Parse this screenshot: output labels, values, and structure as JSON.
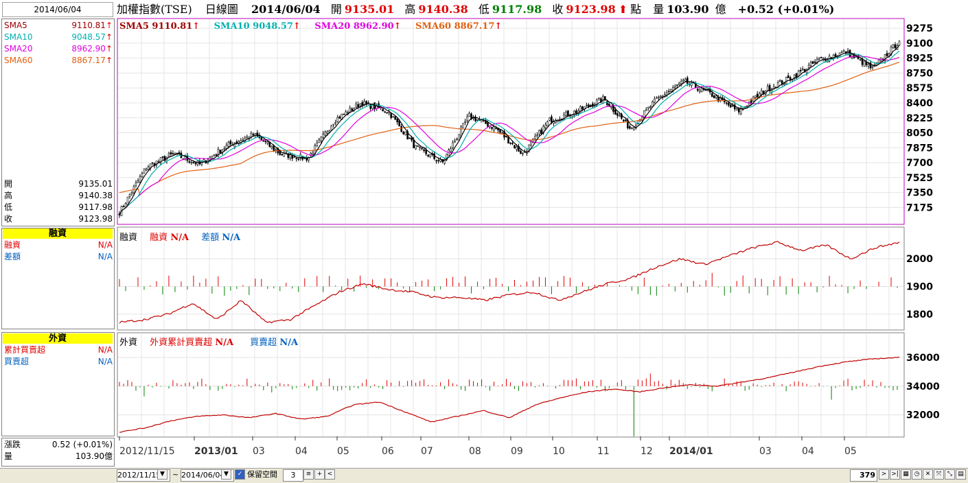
{
  "header": {
    "date": "2014/06/04",
    "index_name": "加權指數(TSE)",
    "chart_kind": "日線圖",
    "chart_date": "2014/06/04",
    "open_label": "開",
    "open": "9135.01",
    "high_label": "高",
    "high": "9140.38",
    "low_label": "低",
    "low": "9117.98",
    "close_label": "收",
    "close": "9123.98",
    "point_label": "點",
    "volume_label": "量",
    "volume": "103.90",
    "volume_unit": "億",
    "change": "+0.52 (+0.01%)"
  },
  "left_panel": {
    "sma": [
      {
        "label": "SMA5",
        "value": "9110.81"
      },
      {
        "label": "SMA10",
        "value": "9048.57"
      },
      {
        "label": "SMA20",
        "value": "8962.90"
      },
      {
        "label": "SMA60",
        "value": "8867.17"
      }
    ],
    "ohlc": [
      {
        "label": "開",
        "value": "9135.01"
      },
      {
        "label": "高",
        "value": "9140.38"
      },
      {
        "label": "低",
        "value": "9117.98"
      },
      {
        "label": "收",
        "value": "9123.98"
      }
    ],
    "margin_title": "融資",
    "margin_rows": [
      {
        "label": "融資",
        "value": "N/A"
      },
      {
        "label": "差額",
        "value": "N/A"
      }
    ],
    "foreign_title": "外資",
    "foreign_rows": [
      {
        "label": "累計買賣超",
        "value": "N/A"
      },
      {
        "label": "買賣超",
        "value": "N/A"
      }
    ],
    "change_label": "漲跌",
    "change_value": "0.52 (+0.01%)",
    "volume_label": "量",
    "volume_value": "103.90億"
  },
  "main_legend": {
    "sma5": "SMA5 9110.81",
    "sma10": "SMA10 9048.57",
    "sma20": "SMA20 8962.90",
    "sma60": "SMA60 8867.17",
    "arrow": "↑"
  },
  "margin_legend": {
    "name": "融資",
    "a_label": "融資",
    "a_value": "N/A",
    "b_label": "差額",
    "b_value": "N/A"
  },
  "foreign_legend": {
    "name": "外資",
    "a_label": "外資累計買賣超",
    "a_value": "N/A",
    "b_label": "買賣超",
    "b_value": "N/A"
  },
  "colors": {
    "sma5": "#a00000",
    "sma10": "#00b0b0",
    "sma20": "#e000e0",
    "sma60": "#e06010",
    "up": "#e00000",
    "down": "#008000"
  },
  "controls": {
    "from_date": "2012/11/15",
    "tilde": "~",
    "to_date": "2014/06/04",
    "reserve_label": "保留空間",
    "reserve_value": "3",
    "count": "379"
  },
  "chart_data": [
    {
      "type": "candlestick",
      "title": "加權指數(TSE) 日線圖",
      "y_ticks": [
        9275,
        9100,
        8925,
        8750,
        8575,
        8400,
        8225,
        8050,
        7875,
        7700,
        7525,
        7350,
        7175
      ],
      "ylim": [
        7050,
        9300
      ],
      "x_ticks": [
        "2012/11/15",
        "2013/01",
        "03",
        "04",
        "05",
        "06",
        "07",
        "08",
        "09",
        "10",
        "11",
        "12",
        "2014/01",
        "03",
        "04",
        "05"
      ],
      "series": [
        {
          "name": "SMA5",
          "last": 9110.81
        },
        {
          "name": "SMA10",
          "last": 9048.57
        },
        {
          "name": "SMA20",
          "last": 8962.9
        },
        {
          "name": "SMA60",
          "last": 8867.17
        }
      ],
      "close_anchors": [
        7120,
        7650,
        7800,
        7680,
        7900,
        8030,
        7800,
        7750,
        8200,
        8400,
        8300,
        7880,
        7700,
        8250,
        8100,
        7800,
        8200,
        8300,
        8450,
        8100,
        8450,
        8650,
        8500,
        8300,
        8550,
        8700,
        8900,
        9000,
        8800,
        9123.98
      ]
    },
    {
      "type": "bar+line",
      "title": "融資",
      "y_ticks": [
        2000,
        1900,
        1800
      ],
      "ylim": [
        1750,
        2080
      ]
    },
    {
      "type": "bar+line",
      "title": "外資",
      "y_ticks": [
        36000,
        34000,
        32000
      ],
      "ylim": [
        30600,
        37000
      ]
    }
  ]
}
